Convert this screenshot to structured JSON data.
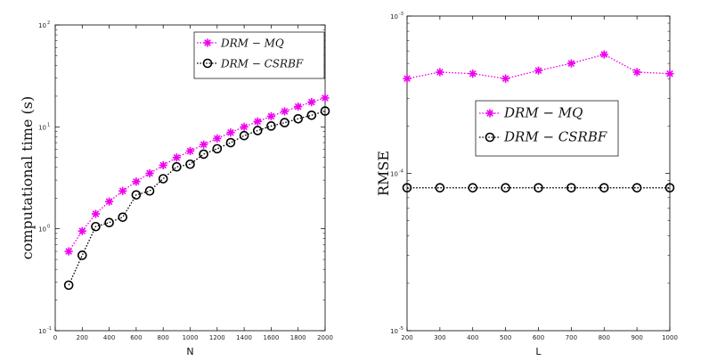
{
  "chart_data": [
    {
      "type": "line",
      "yscale": "log",
      "xlabel": "N",
      "ylabel": "computational time (s)",
      "xlim": [
        0,
        2000
      ],
      "ylim": [
        0.1,
        100
      ],
      "xticks": [
        "0",
        "200",
        "400",
        "600",
        "800",
        "1000",
        "1200",
        "1400",
        "1600",
        "1800",
        "2000"
      ],
      "yticks": [
        {
          "base": "10",
          "exp": "-1"
        },
        {
          "base": "10",
          "exp": "0"
        },
        {
          "base": "10",
          "exp": "1"
        },
        {
          "base": "10",
          "exp": "2"
        }
      ],
      "legend_position": "top-right",
      "series": [
        {
          "name": "DRM − MQ",
          "color": "#ee00ee",
          "marker": "asterisk",
          "x": [
            100,
            200,
            300,
            400,
            500,
            600,
            700,
            800,
            900,
            1000,
            1100,
            1200,
            1300,
            1400,
            1500,
            1600,
            1700,
            1800,
            1900,
            2000
          ],
          "values": [
            0.6,
            0.95,
            1.4,
            1.85,
            2.35,
            2.9,
            3.5,
            4.2,
            5.0,
            5.8,
            6.7,
            7.7,
            8.8,
            10.0,
            11.3,
            12.7,
            14.2,
            15.8,
            17.5,
            19.2
          ]
        },
        {
          "name": "DRM − CSRBF",
          "color": "#000000",
          "marker": "circle",
          "x": [
            100,
            200,
            300,
            400,
            500,
            600,
            700,
            800,
            900,
            1000,
            1100,
            1200,
            1300,
            1400,
            1500,
            1600,
            1700,
            1800,
            1900,
            2000
          ],
          "values": [
            0.28,
            0.55,
            1.05,
            1.15,
            1.3,
            2.15,
            2.35,
            3.1,
            4.05,
            4.3,
            5.4,
            6.1,
            7.0,
            8.2,
            9.2,
            10.2,
            11.0,
            12.0,
            13.0,
            14.3
          ]
        }
      ]
    },
    {
      "type": "line",
      "yscale": "log",
      "xlabel": "L",
      "ylabel": "RMSE",
      "xlim": [
        200,
        1000
      ],
      "ylim": [
        1e-05,
        0.001
      ],
      "xticks": [
        "200",
        "300",
        "400",
        "500",
        "600",
        "700",
        "800",
        "900",
        "1000"
      ],
      "yticks": [
        {
          "base": "10",
          "exp": "-5"
        },
        {
          "base": "10",
          "exp": "-4"
        },
        {
          "base": "10",
          "exp": "-3"
        }
      ],
      "legend_position": "center",
      "series": [
        {
          "name": "DRM − MQ",
          "color": "#ee00ee",
          "marker": "asterisk",
          "x": [
            200,
            300,
            400,
            500,
            600,
            700,
            800,
            900,
            1000
          ],
          "values": [
            0.0004,
            0.00044,
            0.00043,
            0.0004,
            0.00045,
            0.0005,
            0.00057,
            0.00044,
            0.00043
          ]
        },
        {
          "name": "DRM − CSRBF",
          "color": "#000000",
          "marker": "circle",
          "x": [
            200,
            300,
            400,
            500,
            600,
            700,
            800,
            900,
            1000
          ],
          "values": [
            8.1e-05,
            8.1e-05,
            8.1e-05,
            8.1e-05,
            8.1e-05,
            8.1e-05,
            8.1e-05,
            8.1e-05,
            8.1e-05
          ]
        }
      ]
    }
  ]
}
